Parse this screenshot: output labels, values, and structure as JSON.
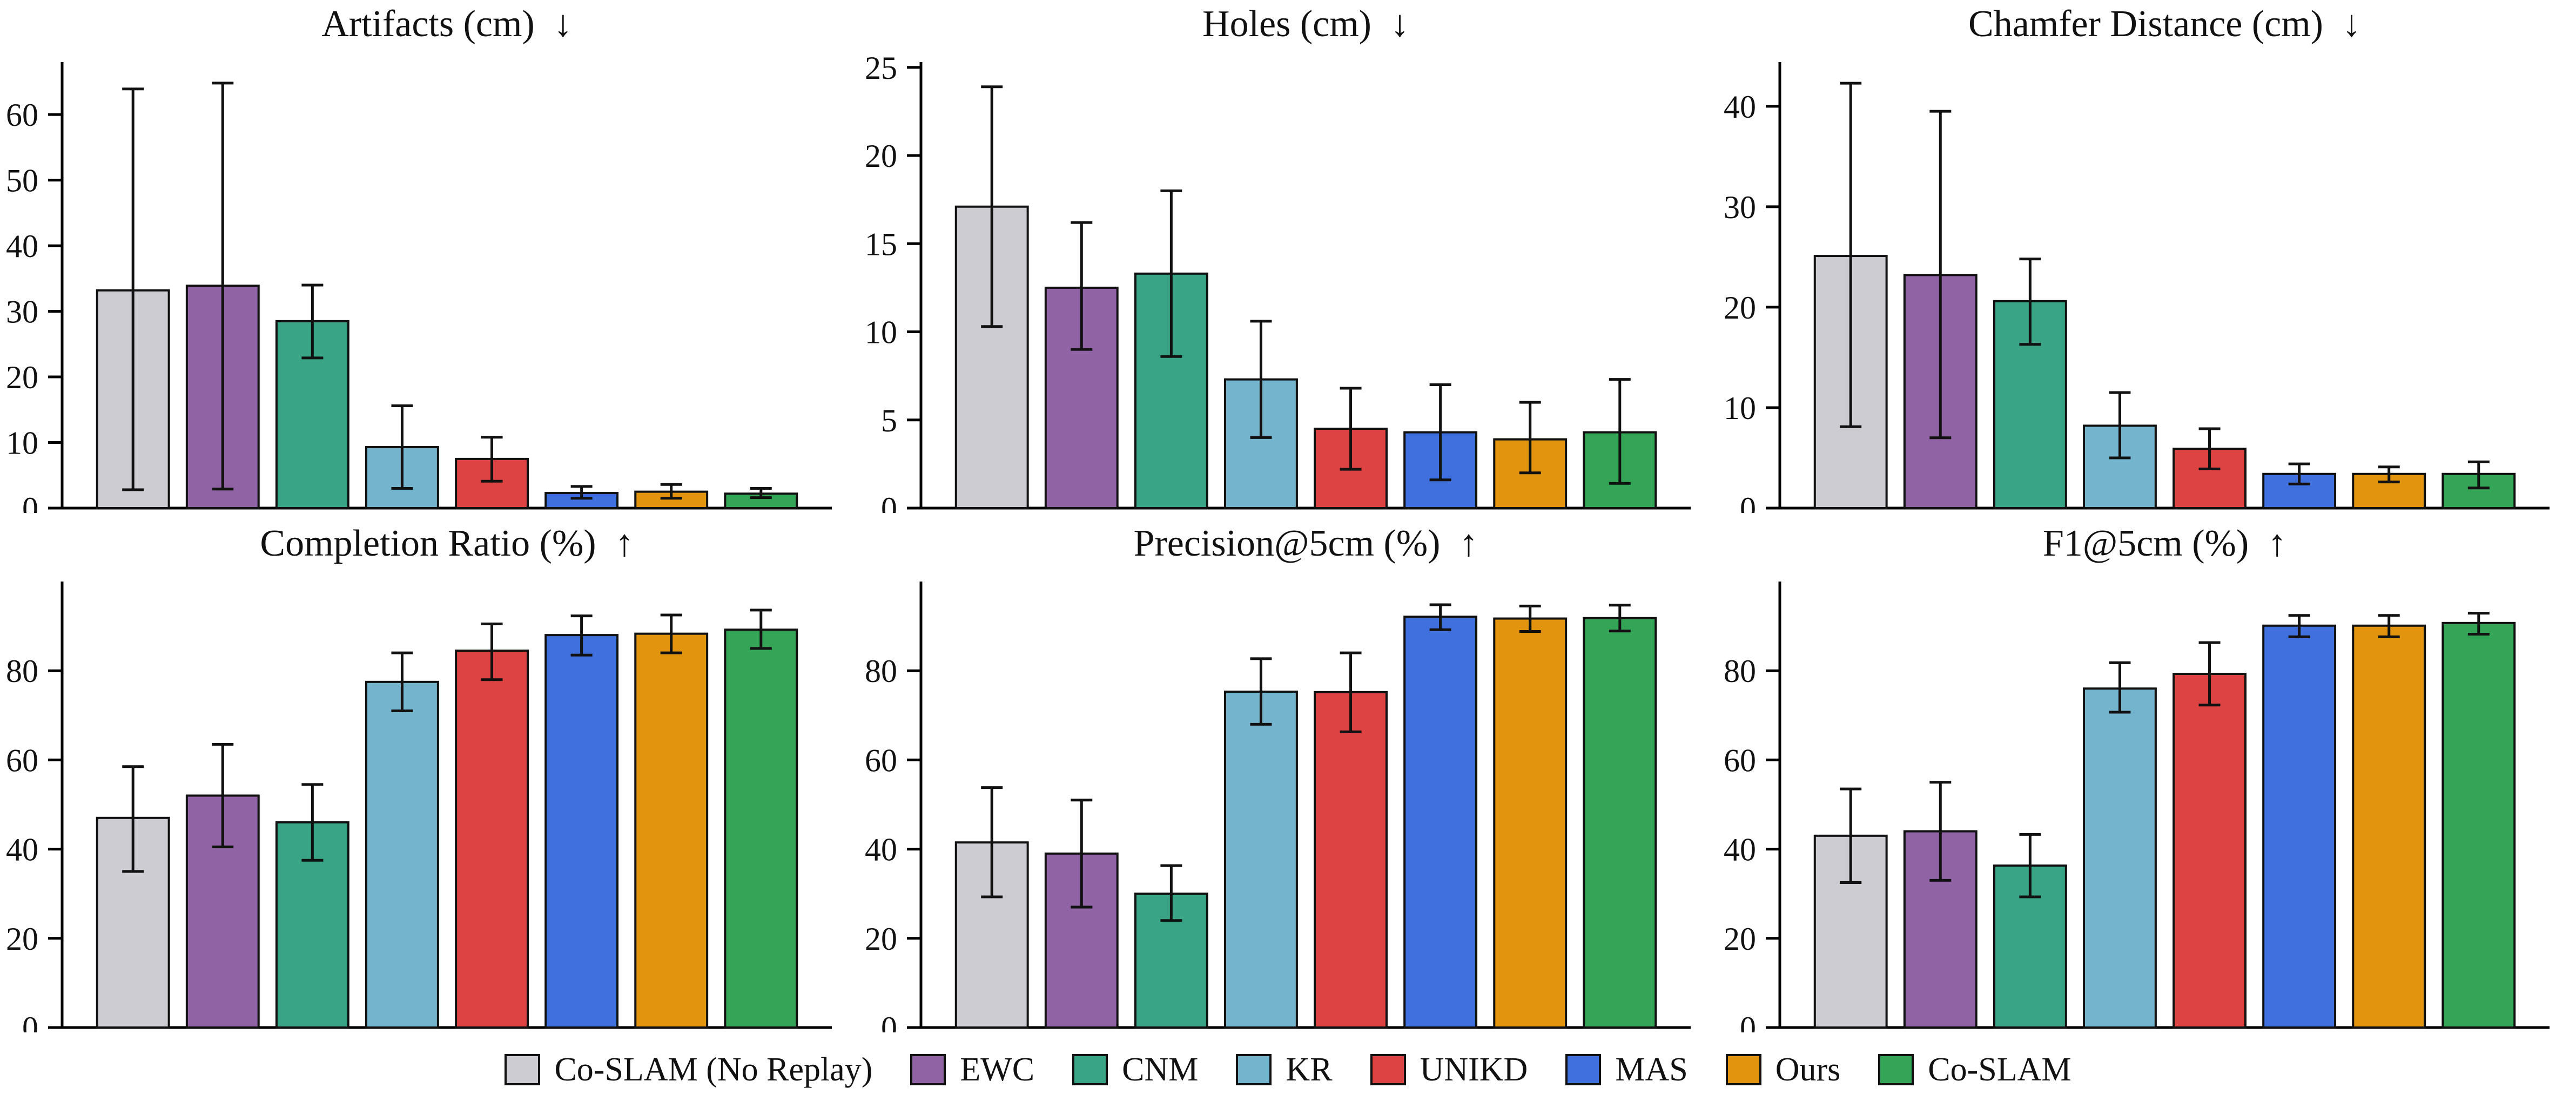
{
  "figure": {
    "background": "#ffffff",
    "rows": 2,
    "cols": 3
  },
  "palette": [
    "#cdccd2",
    "#9064a4",
    "#3aa586",
    "#74b4cd",
    "#dd4342",
    "#4070dd",
    "#e2940e",
    "#34a457"
  ],
  "bar_edge_color": "#111111",
  "error_bar_color": "#111111",
  "legend": {
    "position": "bottom center",
    "items": [
      {
        "label": "Co-SLAM (No Replay)",
        "color": "#cdccd2"
      },
      {
        "label": "EWC",
        "color": "#9064a4"
      },
      {
        "label": "CNM",
        "color": "#3aa586"
      },
      {
        "label": "KR",
        "color": "#74b4cd"
      },
      {
        "label": "UNIKD",
        "color": "#dd4342"
      },
      {
        "label": "MAS",
        "color": "#4070dd"
      },
      {
        "label": "Ours",
        "color": "#e2940e"
      },
      {
        "label": "Co-SLAM",
        "color": "#34a457"
      }
    ]
  },
  "chart_data": [
    {
      "type": "bar",
      "title": "Artifacts (cm)  ↓",
      "categories": [
        "Co-SLAM (No Replay)",
        "EWC",
        "CNM",
        "KR",
        "UNIKD",
        "MAS",
        "Ours",
        "Co-SLAM"
      ],
      "values": [
        33.2,
        33.9,
        28.5,
        9.3,
        7.5,
        2.3,
        2.5,
        2.2
      ],
      "error_low": [
        2.8,
        2.9,
        22.9,
        3.0,
        4.1,
        1.5,
        1.5,
        1.6
      ],
      "error_high": [
        63.9,
        64.8,
        34.0,
        15.6,
        10.8,
        3.3,
        3.6,
        3.0
      ],
      "xlabel": "",
      "ylabel": "",
      "yticks": [
        0,
        10,
        20,
        30,
        40,
        50,
        60
      ],
      "ylim": [
        0,
        68
      ],
      "grid": false
    },
    {
      "type": "bar",
      "title": "Holes (cm)  ↓",
      "categories": [
        "Co-SLAM (No Replay)",
        "EWC",
        "CNM",
        "KR",
        "UNIKD",
        "MAS",
        "Ours",
        "Co-SLAM"
      ],
      "values": [
        17.1,
        12.5,
        13.3,
        7.3,
        4.5,
        4.3,
        3.9,
        4.3
      ],
      "error_low": [
        10.3,
        9.0,
        8.6,
        4.0,
        2.2,
        1.6,
        2.0,
        1.4
      ],
      "error_high": [
        23.9,
        16.2,
        18.0,
        10.6,
        6.8,
        7.0,
        6.0,
        7.3
      ],
      "xlabel": "",
      "ylabel": "",
      "yticks": [
        0,
        5,
        10,
        15,
        20,
        25
      ],
      "ylim": [
        0,
        25.3
      ],
      "grid": false
    },
    {
      "type": "bar",
      "title": "Chamfer Distance (cm)  ↓",
      "categories": [
        "Co-SLAM (No Replay)",
        "EWC",
        "CNM",
        "KR",
        "UNIKD",
        "MAS",
        "Ours",
        "Co-SLAM"
      ],
      "values": [
        25.1,
        23.2,
        20.6,
        8.2,
        5.9,
        3.4,
        3.4,
        3.4
      ],
      "error_low": [
        8.1,
        7.0,
        16.3,
        5.0,
        3.9,
        2.4,
        2.6,
        2.0
      ],
      "error_high": [
        42.3,
        39.5,
        24.8,
        11.5,
        7.9,
        4.4,
        4.1,
        4.6
      ],
      "xlabel": "",
      "ylabel": "",
      "yticks": [
        0,
        10,
        20,
        30,
        40
      ],
      "ylim": [
        0,
        44.4
      ],
      "grid": false
    },
    {
      "type": "bar",
      "title": "Completion Ratio (%)  ↑",
      "categories": [
        "Co-SLAM (No Replay)",
        "EWC",
        "CNM",
        "KR",
        "UNIKD",
        "MAS",
        "Ours",
        "Co-SLAM"
      ],
      "values": [
        47.0,
        52.0,
        46.0,
        77.5,
        84.5,
        88.0,
        88.3,
        89.2
      ],
      "error_low": [
        35.0,
        40.5,
        37.5,
        71.0,
        78.0,
        83.5,
        84.0,
        85.0
      ],
      "error_high": [
        58.5,
        63.5,
        54.5,
        84.0,
        90.5,
        92.3,
        92.5,
        93.6
      ],
      "xlabel": "",
      "ylabel": "",
      "yticks": [
        0,
        20,
        40,
        60,
        80
      ],
      "ylim": [
        0,
        100
      ],
      "grid": false
    },
    {
      "type": "bar",
      "title": "Precision@5cm (%)  ↑",
      "categories": [
        "Co-SLAM (No Replay)",
        "EWC",
        "CNM",
        "KR",
        "UNIKD",
        "MAS",
        "Ours",
        "Co-SLAM"
      ],
      "values": [
        41.5,
        39.0,
        30.0,
        75.3,
        75.2,
        92.1,
        91.7,
        91.8
      ],
      "error_low": [
        29.3,
        27.0,
        24.0,
        68.0,
        66.3,
        89.2,
        88.8,
        88.9
      ],
      "error_high": [
        53.8,
        51.0,
        36.3,
        82.7,
        84.0,
        94.8,
        94.5,
        94.7
      ],
      "xlabel": "",
      "ylabel": "",
      "yticks": [
        0,
        20,
        40,
        60,
        80
      ],
      "ylim": [
        0,
        100
      ],
      "grid": false
    },
    {
      "type": "bar",
      "title": "F1@5cm (%)  ↑",
      "categories": [
        "Co-SLAM (No Replay)",
        "EWC",
        "CNM",
        "KR",
        "UNIKD",
        "MAS",
        "Ours",
        "Co-SLAM"
      ],
      "values": [
        43.0,
        44.0,
        36.3,
        76.0,
        79.3,
        90.1,
        90.1,
        90.7
      ],
      "error_low": [
        32.5,
        33.0,
        29.3,
        70.7,
        72.3,
        87.6,
        87.6,
        88.2
      ],
      "error_high": [
        53.5,
        55.0,
        43.3,
        81.8,
        86.3,
        92.4,
        92.4,
        92.9
      ],
      "xlabel": "",
      "ylabel": "",
      "yticks": [
        0,
        20,
        40,
        60,
        80
      ],
      "ylim": [
        0,
        100
      ],
      "grid": false
    }
  ]
}
